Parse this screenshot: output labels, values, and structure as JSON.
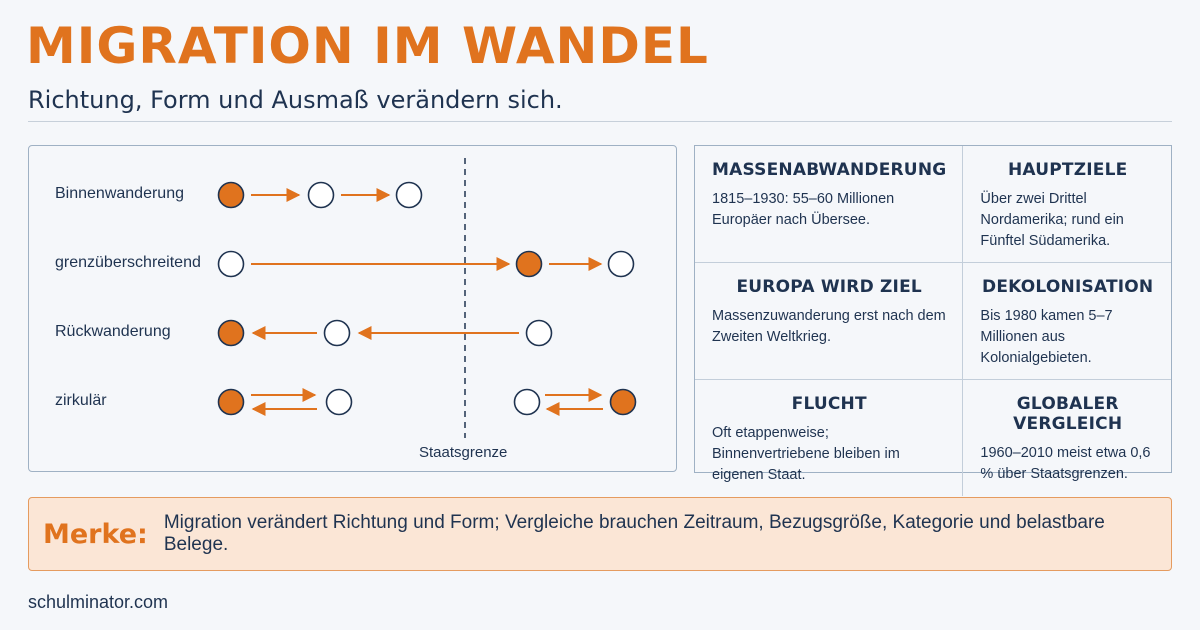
{
  "header": {
    "title": "MIGRATION IM WANDEL",
    "subtitle": "Richtung, Form und Ausmaß verändern sich."
  },
  "diagram": {
    "rows": [
      {
        "label": "Binnenwanderung"
      },
      {
        "label": "grenzüberschreitend"
      },
      {
        "label": "Rückwanderung"
      },
      {
        "label": "zirkulär"
      }
    ],
    "border_label": "Staatsgrenze"
  },
  "facts": [
    {
      "heading": "MASSENABWANDERUNG",
      "text": "1815–1930: 55–60 Millionen Europäer nach Übersee."
    },
    {
      "heading": "HAUPTZIELE",
      "text": "Über zwei Drittel Nordamerika; rund ein Fünftel Südamerika."
    },
    {
      "heading": "EUROPA WIRD ZIEL",
      "text": "Massenzuwanderung erst nach dem Zweiten Weltkrieg."
    },
    {
      "heading": "DEKOLONISATION",
      "text": "Bis 1980 kamen 5–7 Millionen aus Kolonialgebieten."
    },
    {
      "heading": "FLUCHT",
      "text": "Oft etappenweise; Binnenvertriebene bleiben im eigenen Staat."
    },
    {
      "heading": "GLOBALER VERGLEICH",
      "text": "1960–2010 meist etwa 0,6 % über Staatsgrenzen."
    }
  ],
  "merke": {
    "label": "Merke:",
    "text": "Migration verändert Richtung und Form; Vergleiche brauchen Zeitraum, Bezugsgröße, Kategorie und belastbare Belege."
  },
  "footer": {
    "site": "schulminator.com"
  },
  "colors": {
    "accent": "#e0731e",
    "text": "#1f3350",
    "border": "#9fb1c4",
    "merke_bg": "#fbe6d6"
  }
}
